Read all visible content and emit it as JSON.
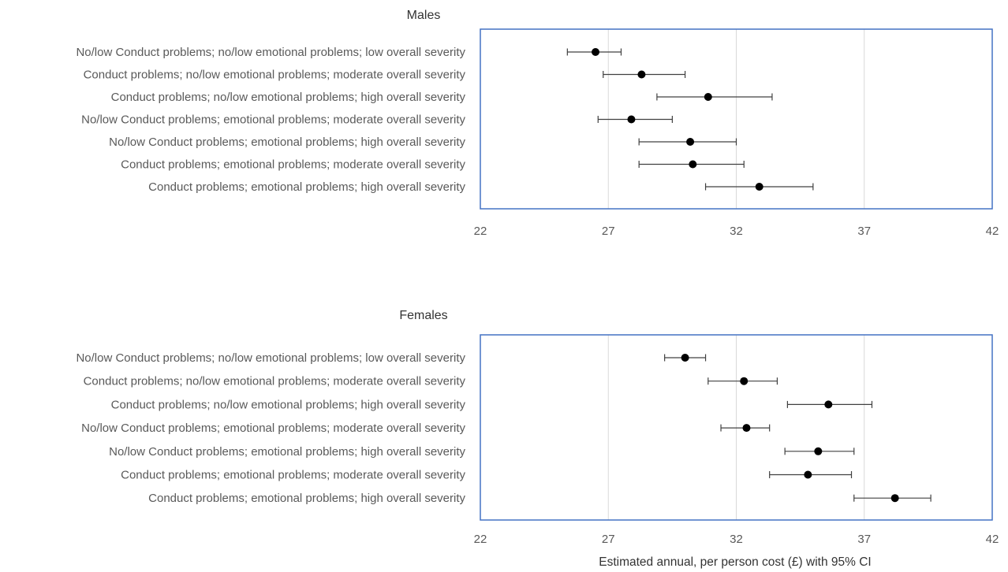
{
  "chart_data": [
    {
      "type": "scatter",
      "title": "Males",
      "xlabel": "",
      "xlim": [
        22,
        42
      ],
      "xticks": [
        22,
        27,
        32,
        37,
        42
      ],
      "grid": "vertical",
      "error_bars": "95% CI",
      "colors": {
        "frame": "#4472c4",
        "grid": "#d9d9d9",
        "marker": "#000000",
        "errorbar": "#404040"
      },
      "categories": [
        "No/low Conduct problems; no/low emotional problems; low overall severity",
        "Conduct problems; no/low emotional problems; moderate overall severity",
        "Conduct problems; no/low emotional problems; high overall severity",
        "No/low Conduct problems; emotional problems; moderate overall severity",
        "No/low Conduct problems; emotional problems; high overall severity",
        "Conduct problems; emotional problems; moderate overall severity",
        "Conduct problems; emotional problems; high overall severity"
      ],
      "values": [
        26.5,
        28.3,
        30.9,
        27.9,
        30.2,
        30.3,
        32.9
      ],
      "ci_low": [
        25.4,
        26.8,
        28.9,
        26.6,
        28.2,
        28.2,
        30.8
      ],
      "ci_high": [
        27.5,
        30.0,
        33.4,
        29.5,
        32.0,
        32.3,
        35.0
      ]
    },
    {
      "type": "scatter",
      "title": "Females",
      "xlabel": "Estimated annual, per person cost (£) with 95% CI",
      "xlim": [
        22,
        42
      ],
      "xticks": [
        22,
        27,
        32,
        37,
        42
      ],
      "grid": "vertical",
      "error_bars": "95% CI",
      "colors": {
        "frame": "#4472c4",
        "grid": "#d9d9d9",
        "marker": "#000000",
        "errorbar": "#404040"
      },
      "categories": [
        "No/low Conduct problems; no/low emotional problems; low overall severity",
        "Conduct problems; no/low emotional problems; moderate overall severity",
        "Conduct problems; no/low emotional problems; high overall severity",
        "No/low Conduct problems; emotional problems; moderate overall severity",
        "No/low Conduct problems; emotional problems; high overall severity",
        "Conduct problems; emotional problems; moderate overall severity",
        "Conduct problems; emotional problems; high overall severity"
      ],
      "values": [
        30.0,
        32.3,
        35.6,
        32.4,
        35.2,
        34.8,
        38.2
      ],
      "ci_low": [
        29.2,
        30.9,
        34.0,
        31.4,
        33.9,
        33.3,
        36.6
      ],
      "ci_high": [
        30.8,
        33.6,
        37.3,
        33.3,
        36.6,
        36.5,
        39.6
      ]
    }
  ]
}
